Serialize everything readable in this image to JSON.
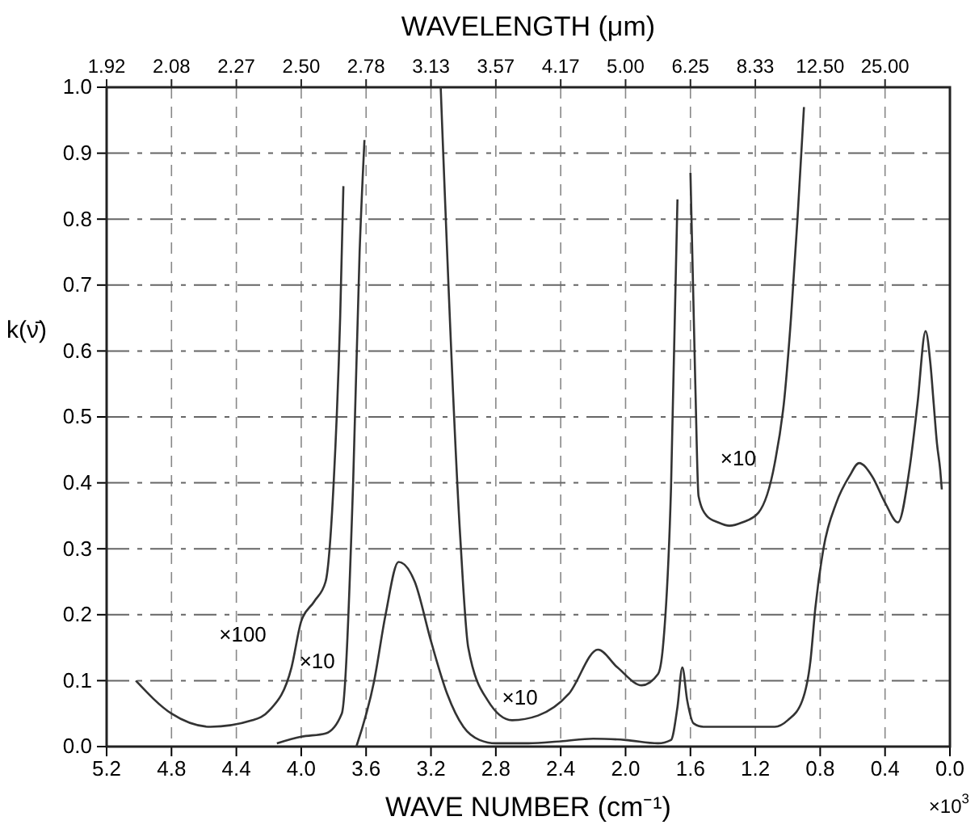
{
  "chart_data": {
    "type": "line",
    "x2label": "WAVELENGTH (μm)",
    "xlabel": "WAVE NUMBER (cm⁻¹)",
    "ylabel": "k(ν̄)",
    "xlim": [
      5.2,
      0.0
    ],
    "ylim": [
      0.0,
      1.0
    ],
    "xticks": [
      {
        "value": 5.2,
        "label": "5.2"
      },
      {
        "value": 4.8,
        "label": "4.8"
      },
      {
        "value": 4.4,
        "label": "4.4"
      },
      {
        "value": 4.0,
        "label": "4.0"
      },
      {
        "value": 3.6,
        "label": "3.6"
      },
      {
        "value": 3.2,
        "label": "3.2"
      },
      {
        "value": 2.8,
        "label": "2.8"
      },
      {
        "value": 2.4,
        "label": "2.4"
      },
      {
        "value": 2.0,
        "label": "2.0"
      },
      {
        "value": 1.6,
        "label": "1.6"
      },
      {
        "value": 1.2,
        "label": "1.2"
      },
      {
        "value": 0.8,
        "label": "0.8"
      },
      {
        "value": 0.4,
        "label": "0.4"
      },
      {
        "value": 0.0,
        "label": "0.0"
      }
    ],
    "yticks": [
      {
        "value": 0.0,
        "label": "0.0"
      },
      {
        "value": 0.1,
        "label": "0.1"
      },
      {
        "value": 0.2,
        "label": "0.2"
      },
      {
        "value": 0.3,
        "label": "0.3"
      },
      {
        "value": 0.4,
        "label": "0.4"
      },
      {
        "value": 0.5,
        "label": "0.5"
      },
      {
        "value": 0.6,
        "label": "0.6"
      },
      {
        "value": 0.7,
        "label": "0.7"
      },
      {
        "value": 0.8,
        "label": "0.8"
      },
      {
        "value": 0.9,
        "label": "0.9"
      },
      {
        "value": 1.0,
        "label": "1.0"
      }
    ],
    "grid": true,
    "marker": "none",
    "line_style": "solid",
    "series": [
      {
        "color": "#333333",
        "x": [
          5.02,
          4.8,
          4.56,
          4.3,
          4.2,
          4.06,
          4.0,
          3.92,
          3.85,
          3.8,
          3.76,
          3.74
        ],
        "values": [
          0.1,
          0.05,
          0.03,
          0.04,
          0.054,
          0.12,
          0.19,
          0.22,
          0.25,
          0.4,
          0.65,
          0.85
        ]
      },
      {
        "color": "#333333",
        "x": [
          4.15,
          4.0,
          3.85,
          3.75,
          3.68,
          3.64,
          3.61,
          3.4,
          3.14,
          3.02,
          2.97,
          2.85,
          2.7,
          2.54,
          2.35,
          2.17,
          2.05,
          1.9,
          1.8,
          1.77,
          1.72,
          1.68
        ],
        "values": [
          0.005,
          0.015,
          0.02,
          0.05,
          0.4,
          0.75,
          0.92,
          null,
          1.0,
          0.32,
          0.15,
          0.07,
          0.04,
          0.047,
          0.08,
          0.147,
          0.12,
          0.093,
          0.11,
          0.15,
          0.39,
          0.83
        ]
      },
      {
        "color": "#333333",
        "x": [
          3.66,
          3.55,
          3.48,
          3.4,
          3.3,
          3.2,
          3.1,
          3.0,
          2.9,
          2.8,
          2.6,
          2.4,
          2.2,
          2.0,
          1.8,
          1.72,
          1.68,
          1.65,
          1.62,
          1.58,
          1.52,
          1.4,
          1.2,
          1.08,
          1.0,
          0.91,
          0.86,
          0.83,
          0.78,
          0.7,
          0.62,
          0.56,
          0.48,
          0.4,
          0.32,
          0.25,
          0.2,
          0.15,
          0.12,
          0.1,
          0.08,
          0.06,
          0.05
        ],
        "values": [
          0.0,
          0.1,
          0.2,
          0.28,
          0.25,
          0.16,
          0.08,
          0.03,
          0.01,
          0.005,
          0.005,
          0.008,
          0.012,
          0.01,
          0.005,
          0.01,
          0.06,
          0.12,
          0.07,
          0.035,
          0.03,
          0.03,
          0.03,
          0.03,
          0.04,
          0.07,
          0.13,
          0.21,
          0.3,
          0.37,
          0.41,
          0.43,
          0.41,
          0.37,
          0.34,
          0.42,
          0.52,
          0.63,
          0.58,
          0.52,
          0.46,
          0.42,
          0.39
        ]
      },
      {
        "color": "#333333",
        "x": [
          1.6,
          1.57,
          1.55,
          1.5,
          1.43,
          1.36,
          1.28,
          1.18,
          1.08,
          1.02,
          0.98,
          0.94,
          0.9
        ],
        "values": [
          0.87,
          0.55,
          0.38,
          0.35,
          0.34,
          0.335,
          0.34,
          0.355,
          0.43,
          0.53,
          0.65,
          0.8,
          0.97
        ]
      }
    ],
    "annotations": [
      "×100",
      "×10",
      "×10",
      "×10",
      "×10$^{3}$",
      "1.92",
      "2.08",
      "2.27",
      "2.50",
      "2.78",
      "3.13",
      "3.57",
      "4.17",
      "5.00",
      "6.25",
      "8.33",
      "12.50",
      "25.00"
    ]
  }
}
